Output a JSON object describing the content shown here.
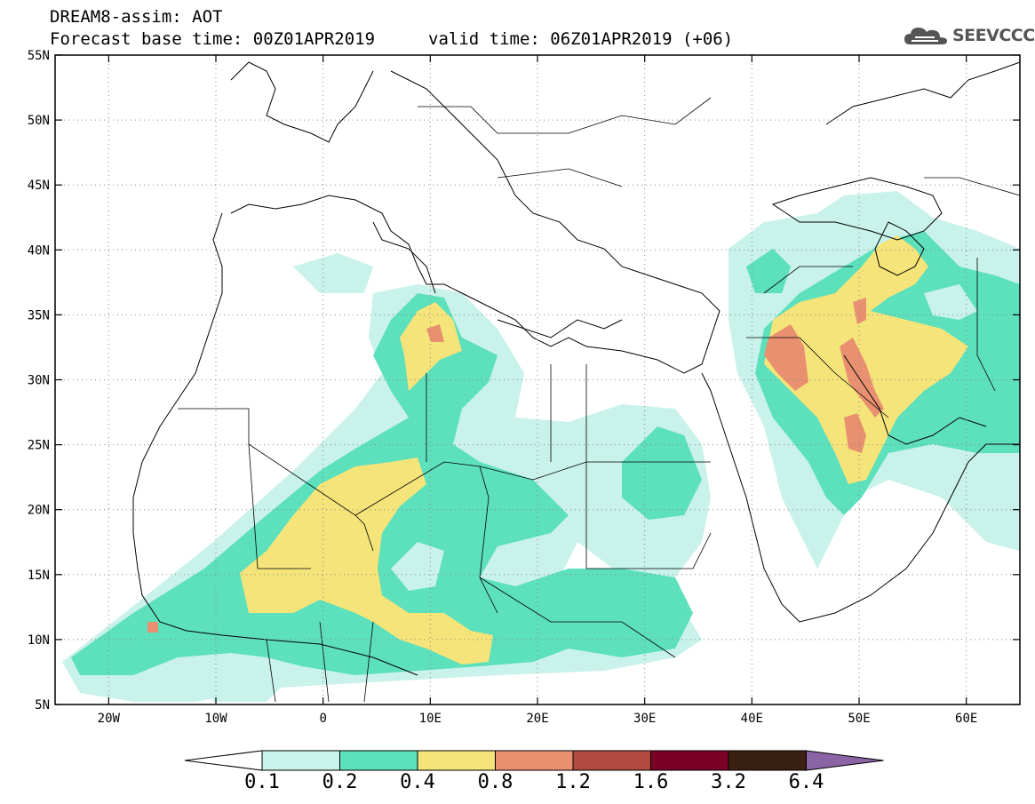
{
  "header": {
    "title_line1": "DREAM8-assim: AOT",
    "title_line2": "Forecast base time: 00Z01APR2019",
    "valid_time": "valid time: 06Z01APR2019 (+06)",
    "logo_text": "SEEVCCC",
    "logo_icon": "cloud-icon"
  },
  "map": {
    "lon_labels": [
      "20W",
      "10W",
      "0",
      "10E",
      "20E",
      "30E",
      "40E",
      "50E",
      "60E"
    ],
    "lon_values": [
      -20,
      -10,
      0,
      10,
      20,
      30,
      40,
      50,
      60
    ],
    "lat_labels": [
      "55N",
      "50N",
      "45N",
      "40N",
      "35N",
      "30N",
      "25N",
      "20N",
      "15N",
      "10N",
      "5N"
    ],
    "lat_values": [
      55,
      50,
      45,
      40,
      35,
      30,
      25,
      20,
      15,
      10,
      5
    ],
    "extent": {
      "lon_min": -25,
      "lon_max": 65,
      "lat_min": 5,
      "lat_max": 55
    },
    "projection": "equirectangular",
    "grid": "dotted"
  },
  "colorbar": {
    "labels": [
      "0.1",
      "0.2",
      "0.4",
      "0.8",
      "1.2",
      "1.6",
      "3.2",
      "6.4"
    ],
    "colors": [
      "#c8f2ea",
      "#5de0bc",
      "#f5e47a",
      "#e89070",
      "#b04a3e",
      "#7a0028",
      "#3a2010",
      "#8a64a4"
    ],
    "under_color": "#ffffff",
    "over_color": "#8a64a4"
  }
}
